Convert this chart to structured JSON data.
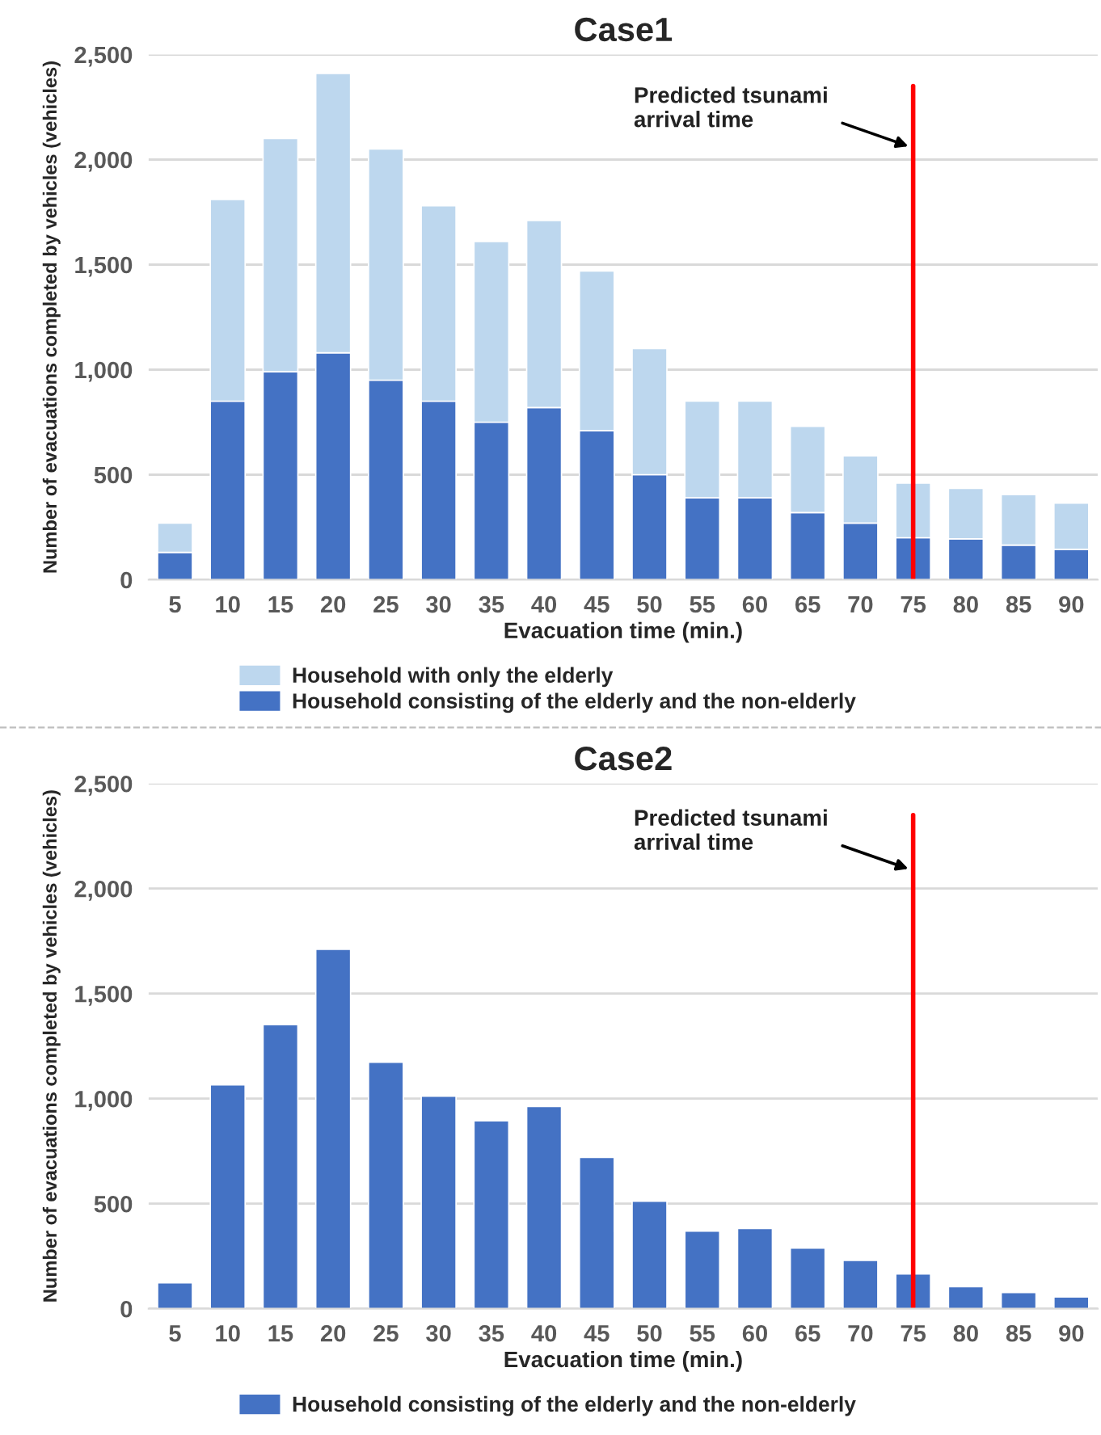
{
  "chart_data": [
    {
      "type": "bar",
      "title": "Case1",
      "xlabel": "Evacuation time (min.)",
      "ylabel": "Number of evacuations completed by vehicles (vehicles)",
      "stacked": true,
      "categories": [
        "5",
        "10",
        "15",
        "20",
        "25",
        "30",
        "35",
        "40",
        "45",
        "50",
        "55",
        "60",
        "65",
        "70",
        "75",
        "80",
        "85",
        "90"
      ],
      "series": [
        {
          "name": "Household consisting of the elderly and the non-elderly",
          "color": "#4472c4",
          "values": [
            130,
            850,
            990,
            1080,
            950,
            850,
            750,
            820,
            710,
            500,
            390,
            390,
            320,
            270,
            200,
            195,
            165,
            145
          ]
        },
        {
          "name": "Household with only the elderly",
          "color": "#bdd7ee",
          "values": [
            140,
            960,
            1110,
            1330,
            1100,
            930,
            860,
            890,
            760,
            600,
            460,
            460,
            410,
            320,
            260,
            240,
            240,
            220
          ]
        }
      ],
      "ylim": [
        0,
        2500
      ],
      "yticks": [
        0,
        {
          "value": 500,
          "label": "500"
        },
        {
          "value": 1000,
          "label": "1,000"
        },
        {
          "value": 1500,
          "label": "1,500"
        },
        {
          "value": 2000,
          "label": "2,000"
        },
        {
          "value": 2500,
          "label": "2,500"
        }
      ],
      "grid": "y",
      "legend": "bottom",
      "ref_lines": [
        {
          "axis": "x",
          "value": "75",
          "color": "#ff0000"
        }
      ],
      "annotations": [
        {
          "text": "Predicted tsunami\narrival time",
          "x": "75",
          "y": 2060
        }
      ]
    },
    {
      "type": "bar",
      "title": "Case2",
      "xlabel": "Evacuation time (min.)",
      "ylabel": "Number of evacuations completed by vehicles (vehicles)",
      "categories": [
        "5",
        "10",
        "15",
        "20",
        "25",
        "30",
        "35",
        "40",
        "45",
        "50",
        "55",
        "60",
        "65",
        "70",
        "75",
        "80",
        "85",
        "90"
      ],
      "series": [
        {
          "name": "Household consisting of the elderly and the non-elderly",
          "color": "#4472c4",
          "values": [
            123,
            1066,
            1352,
            1711,
            1173,
            1012,
            894,
            963,
            720,
            512,
            369,
            382,
            289,
            230,
            166,
            105,
            77,
            56
          ]
        }
      ],
      "ylim": [
        0,
        2500
      ],
      "yticks": [
        0,
        {
          "value": 500,
          "label": "500"
        },
        {
          "value": 1000,
          "label": "1,000"
        },
        {
          "value": 1500,
          "label": "1,500"
        },
        {
          "value": 2000,
          "label": "2,000"
        },
        {
          "value": 2500,
          "label": "2,500"
        }
      ],
      "grid": "y",
      "legend": "bottom",
      "ref_lines": [
        {
          "axis": "x",
          "value": "75",
          "color": "#ff0000"
        }
      ],
      "annotations": [
        {
          "text": "Predicted tsunami\narrival time",
          "x": "75",
          "y": 2090
        }
      ]
    }
  ]
}
